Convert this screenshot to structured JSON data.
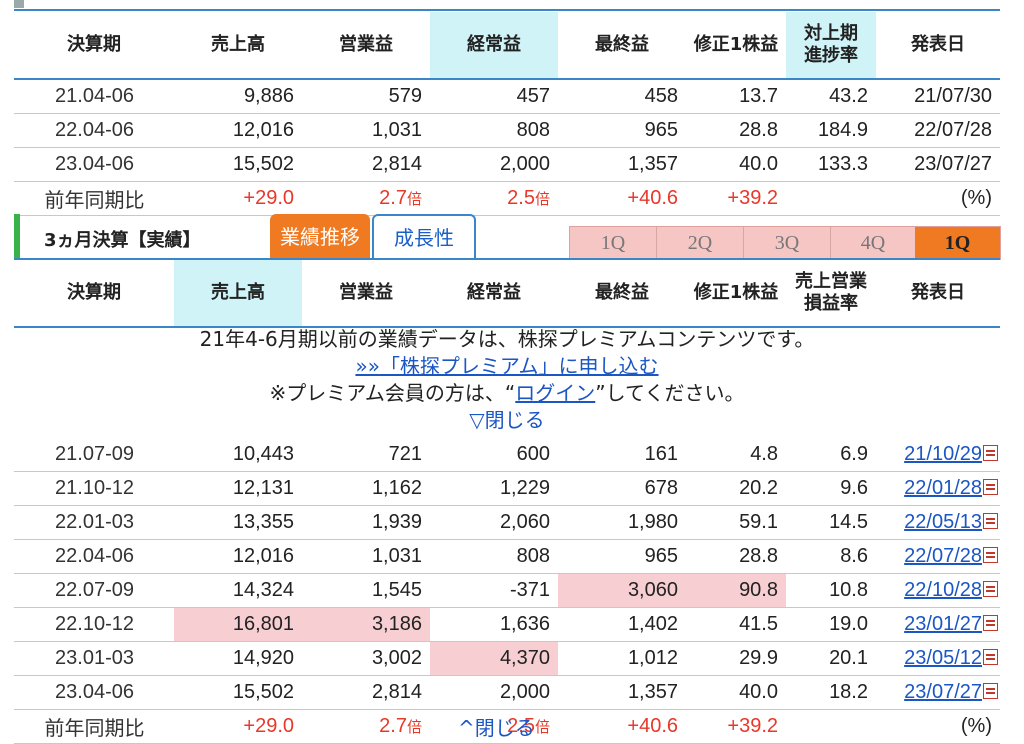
{
  "top_partial_label": "",
  "annual": {
    "headers": [
      "決算期",
      "売上高",
      "営業益",
      "経常益",
      "最終益",
      "修正1株益",
      "対上期進捗率",
      "発表日"
    ],
    "header_lines": [
      [
        "決算期"
      ],
      [
        "売上高"
      ],
      [
        "営業益"
      ],
      [
        "経常益"
      ],
      [
        "最終益"
      ],
      [
        "修正1株益"
      ],
      [
        "対上期",
        "進捗率"
      ],
      [
        "発表日"
      ]
    ],
    "rows": [
      [
        "21.04-06",
        "9,886",
        "579",
        "457",
        "458",
        "13.7",
        "43.2",
        "21/07/30"
      ],
      [
        "22.04-06",
        "12,016",
        "1,031",
        "808",
        "965",
        "28.8",
        "184.9",
        "22/07/28"
      ],
      [
        "23.04-06",
        "15,502",
        "2,814",
        "2,000",
        "1,357",
        "40.0",
        "133.3",
        "23/07/27"
      ]
    ],
    "yoy": {
      "label": "前年同期比",
      "sales": "+29.0",
      "op": "2.7",
      "ord": "2.5",
      "net": "+40.6",
      "eps": "+39.2",
      "unit": "倍",
      "pct": "(%)"
    }
  },
  "section2": {
    "title": "3ヵ月決算【実績】",
    "tab_active": "業績推移",
    "tab_inactive": "成長性",
    "quarter_buttons": [
      "1Q",
      "2Q",
      "3Q",
      "4Q",
      "1Q"
    ]
  },
  "quarterly": {
    "header_lines": [
      [
        "決算期"
      ],
      [
        "売上高"
      ],
      [
        "営業益"
      ],
      [
        "経常益"
      ],
      [
        "最終益"
      ],
      [
        "修正1株益"
      ],
      [
        "売上営業",
        "損益率"
      ],
      [
        "発表日"
      ]
    ],
    "notice": {
      "line1": "21年4-6月期以前の業績データは、株探プレミアムコンテンツです。",
      "line2_prefix": "»»",
      "line2_link": "「株探プレミアム」に申し込む",
      "line3_a": "※プレミアム会員の方は、“",
      "line3_link": "ログイン",
      "line3_b": "”してください。",
      "line4": "▽閉じる"
    },
    "rows": [
      [
        "21.07-09",
        "10,443",
        "721",
        "600",
        "161",
        "4.8",
        "6.9",
        "21/10/29"
      ],
      [
        "21.10-12",
        "12,131",
        "1,162",
        "1,229",
        "678",
        "20.2",
        "9.6",
        "22/01/28"
      ],
      [
        "22.01-03",
        "13,355",
        "1,939",
        "2,060",
        "1,980",
        "59.1",
        "14.5",
        "22/05/13"
      ],
      [
        "22.04-06",
        "12,016",
        "1,031",
        "808",
        "965",
        "28.8",
        "8.6",
        "22/07/28"
      ],
      [
        "22.07-09",
        "14,324",
        "1,545",
        "-371",
        "3,060",
        "90.8",
        "10.8",
        "22/10/28"
      ],
      [
        "22.10-12",
        "16,801",
        "3,186",
        "1,636",
        "1,402",
        "41.5",
        "19.0",
        "23/01/27"
      ],
      [
        "23.01-03",
        "14,920",
        "3,002",
        "4,370",
        "1,012",
        "29.9",
        "20.1",
        "23/05/12"
      ],
      [
        "23.04-06",
        "15,502",
        "2,814",
        "2,000",
        "1,357",
        "40.0",
        "18.2",
        "23/07/27"
      ]
    ],
    "yoy": {
      "label": "前年同期比",
      "sales": "+29.0",
      "op": "2.7",
      "ord": "2.5",
      "net": "+40.6",
      "eps": "+39.2",
      "unit": "倍",
      "pct": "(%)"
    },
    "bottom_partial": "^閉じる"
  },
  "colors": {
    "accent": "#3a86c8",
    "highlight_col": "#cff3f6",
    "pink_cell": "#f7cfd2",
    "orange": "#ef7a22",
    "red": "#e8382a",
    "green": "#37b34a"
  }
}
